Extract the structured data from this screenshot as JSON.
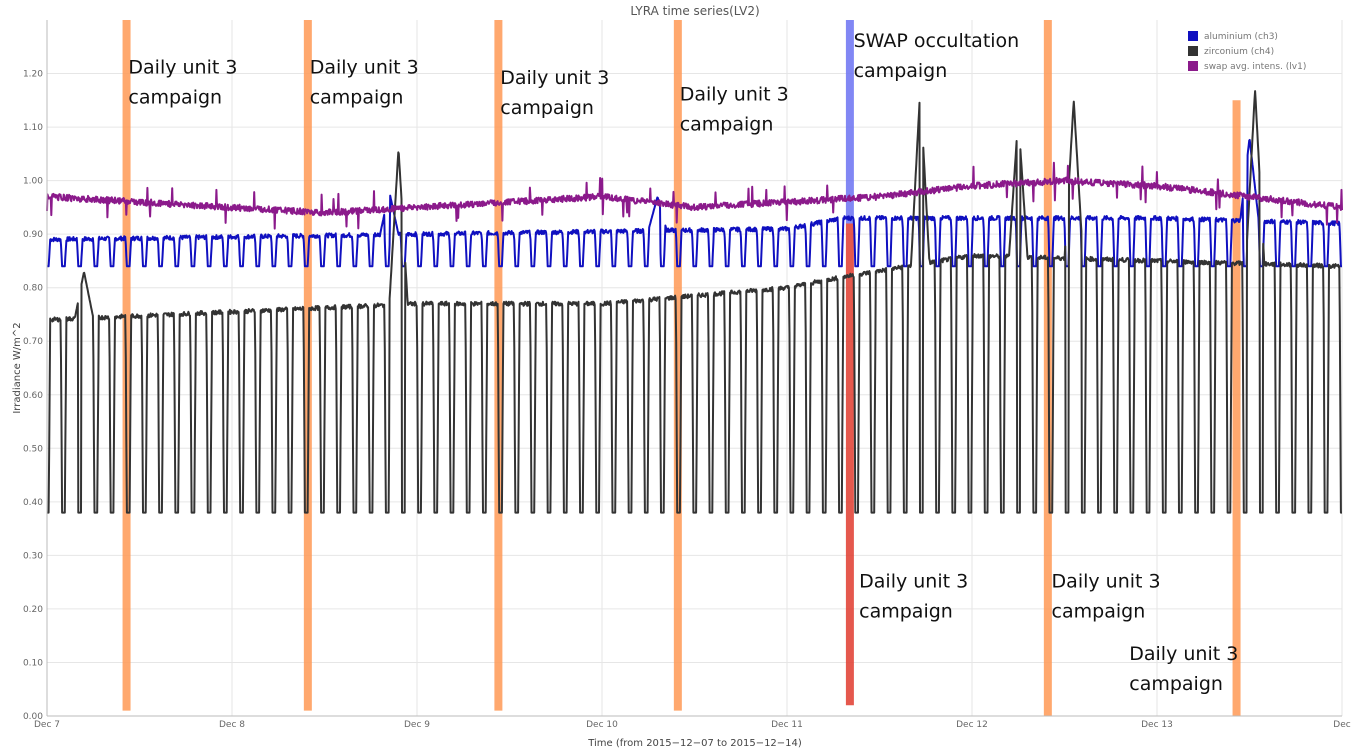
{
  "chart_data": {
    "type": "line",
    "title": "LYRA time series(LV2)",
    "xlabel": "Time (from 2015−12−07 to 2015−12−14)",
    "ylabel": "Irradiance W/m^2",
    "xlim": [
      7,
      14
    ],
    "ylim": [
      0,
      1.3
    ],
    "grid": true,
    "legend_position": "top-right",
    "x_ticks": [
      {
        "v": 7,
        "label": "Dec 7"
      },
      {
        "v": 8,
        "label": "Dec 8"
      },
      {
        "v": 9,
        "label": "Dec 9"
      },
      {
        "v": 10,
        "label": "Dec 10"
      },
      {
        "v": 11,
        "label": "Dec 11"
      },
      {
        "v": 12,
        "label": "Dec 12"
      },
      {
        "v": 13,
        "label": "Dec 13"
      },
      {
        "v": 14,
        "label": "Dec"
      }
    ],
    "y_ticks": [
      {
        "v": 0,
        "label": "0.00"
      },
      {
        "v": 0.1,
        "label": "0.10"
      },
      {
        "v": 0.2,
        "label": "0.20"
      },
      {
        "v": 0.3,
        "label": "0.30"
      },
      {
        "v": 0.4,
        "label": "0.40"
      },
      {
        "v": 0.5,
        "label": "0.50"
      },
      {
        "v": 0.6,
        "label": "0.60"
      },
      {
        "v": 0.7,
        "label": "0.70"
      },
      {
        "v": 0.8,
        "label": "0.80"
      },
      {
        "v": 0.9,
        "label": "0.90"
      },
      {
        "v": 1.0,
        "label": "1.00"
      },
      {
        "v": 1.1,
        "label": "1.10"
      },
      {
        "v": 1.2,
        "label": "1.20"
      }
    ],
    "series": [
      {
        "name": "aluminium (ch3)",
        "color": "#1010c0",
        "pattern": "oscillating",
        "low": 0.84,
        "high": [
          [
            7,
            0.89
          ],
          [
            9,
            0.9
          ],
          [
            11,
            0.91
          ],
          [
            11.3,
            0.93
          ],
          [
            12,
            0.93
          ],
          [
            13,
            0.93
          ],
          [
            14,
            0.92
          ]
        ],
        "spikes": [
          {
            "x": 8.85,
            "y": 0.98
          },
          {
            "x": 10.3,
            "y": 0.97
          },
          {
            "x": 13.5,
            "y": 1.08
          }
        ]
      },
      {
        "name": "zirconium (ch4)",
        "color": "#333333",
        "pattern": "oscillating",
        "low": 0.38,
        "high": [
          [
            7,
            0.74
          ],
          [
            9,
            0.77
          ],
          [
            10,
            0.77
          ],
          [
            11,
            0.8
          ],
          [
            11.3,
            0.82
          ],
          [
            12,
            0.86
          ],
          [
            13,
            0.85
          ],
          [
            14,
            0.84
          ]
        ],
        "spikes": [
          {
            "x": 7.2,
            "y": 0.83
          },
          {
            "x": 8.9,
            "y": 1.06
          },
          {
            "x": 11.72,
            "y": 1.17
          },
          {
            "x": 12.25,
            "y": 1.12
          },
          {
            "x": 12.55,
            "y": 1.15
          },
          {
            "x": 13.53,
            "y": 1.17
          }
        ]
      },
      {
        "name": "swap avg. intens. (lv1)",
        "color": "#8b1a8b",
        "pattern": "smooth",
        "points": [
          [
            7,
            0.97
          ],
          [
            7.5,
            0.96
          ],
          [
            8,
            0.95
          ],
          [
            8.5,
            0.94
          ],
          [
            9,
            0.95
          ],
          [
            9.5,
            0.96
          ],
          [
            10,
            0.97
          ],
          [
            10.5,
            0.95
          ],
          [
            11,
            0.96
          ],
          [
            11.5,
            0.97
          ],
          [
            12,
            0.99
          ],
          [
            12.5,
            1.0
          ],
          [
            13,
            0.99
          ],
          [
            13.5,
            0.97
          ],
          [
            14,
            0.95
          ]
        ]
      }
    ],
    "campaign_bands": [
      {
        "x": 7.43,
        "color": "#ff9955",
        "from": 0.01,
        "to": 1.3
      },
      {
        "x": 8.41,
        "color": "#ff9955",
        "from": 0.01,
        "to": 1.3
      },
      {
        "x": 9.44,
        "color": "#ff9955",
        "from": 0.01,
        "to": 1.3
      },
      {
        "x": 10.41,
        "color": "#ff9955",
        "from": 0.01,
        "to": 1.3
      },
      {
        "x": 12.41,
        "color": "#ff9955",
        "from": 0.0,
        "to": 1.3
      },
      {
        "x": 13.43,
        "color": "#ff9955",
        "from": 0.0,
        "to": 1.15
      },
      {
        "x": 11.34,
        "color": "#6b72f2",
        "from": 0.92,
        "to": 1.3
      },
      {
        "x": 11.34,
        "color": "#e03b2e",
        "from": 0.02,
        "to": 0.92
      }
    ]
  },
  "annotations": [
    {
      "line1": "Daily unit 3",
      "line2": "campaign",
      "x": 7.44,
      "y": 1.2
    },
    {
      "line1": "Daily unit 3",
      "line2": "campaign",
      "x": 8.42,
      "y": 1.2
    },
    {
      "line1": "Daily unit 3",
      "line2": "campaign",
      "x": 9.45,
      "y": 1.18
    },
    {
      "line1": "Daily unit 3",
      "line2": "campaign",
      "x": 10.42,
      "y": 1.15
    },
    {
      "line1": "SWAP occultation",
      "line2": "campaign",
      "x": 11.36,
      "y": 1.25
    },
    {
      "line1": "Daily unit 3",
      "line2": "campaign",
      "x": 11.39,
      "y": 0.24
    },
    {
      "line1": "Daily unit 3",
      "line2": "campaign",
      "x": 12.43,
      "y": 0.24
    },
    {
      "line1": "Daily unit 3",
      "line2": "campaign",
      "x": 12.85,
      "y": 0.105
    }
  ]
}
